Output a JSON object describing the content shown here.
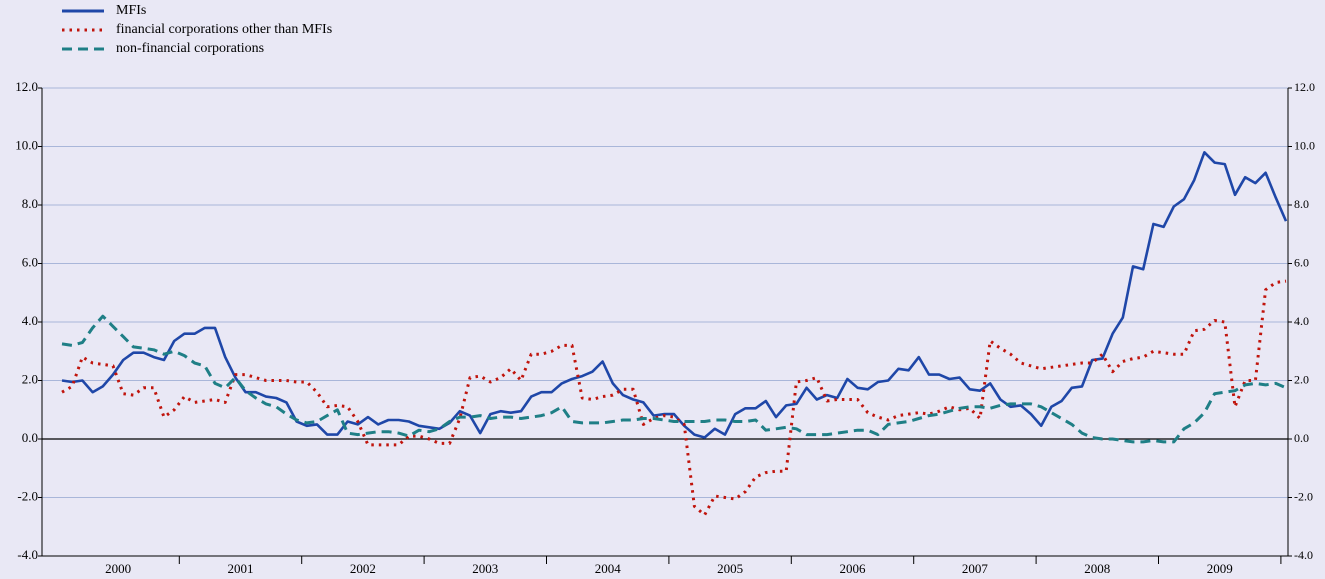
{
  "chart_data": {
    "type": "line",
    "categories": [
      null,
      null,
      null,
      null,
      null,
      null,
      "2000",
      null,
      null,
      null,
      null,
      null,
      null,
      null,
      null,
      null,
      null,
      null,
      "2001",
      null,
      null,
      null,
      null,
      null,
      null,
      null,
      null,
      null,
      null,
      null,
      "2002",
      null,
      null,
      null,
      null,
      null,
      null,
      null,
      null,
      null,
      null,
      null,
      "2003",
      null,
      null,
      null,
      null,
      null,
      null,
      null,
      null,
      null,
      null,
      null,
      "2004",
      null,
      null,
      null,
      null,
      null,
      null,
      null,
      null,
      null,
      null,
      null,
      "2005",
      null,
      null,
      null,
      null,
      null,
      null,
      null,
      null,
      null,
      null,
      null,
      "2006",
      null,
      null,
      null,
      null,
      null,
      null,
      null,
      null,
      null,
      null,
      null,
      "2007",
      null,
      null,
      null,
      null,
      null,
      null,
      null,
      null,
      null,
      null,
      null,
      "2008",
      null,
      null,
      null,
      null,
      null,
      null,
      null,
      null,
      null,
      null,
      null,
      "2009",
      null,
      null,
      null,
      null,
      null,
      null
    ],
    "series": [
      {
        "name": "MFIs",
        "color": "#1f47a8",
        "dash": "solid",
        "values": [
          2.0,
          1.95,
          2.0,
          1.6,
          1.8,
          2.2,
          2.7,
          2.95,
          2.95,
          2.8,
          2.7,
          3.35,
          3.6,
          3.6,
          3.8,
          3.8,
          2.8,
          2.1,
          1.6,
          1.6,
          1.45,
          1.4,
          1.25,
          0.6,
          0.45,
          0.5,
          0.15,
          0.15,
          0.6,
          0.5,
          0.75,
          0.5,
          0.65,
          0.65,
          0.6,
          0.45,
          0.4,
          0.35,
          0.55,
          0.95,
          0.8,
          0.2,
          0.85,
          0.95,
          0.9,
          0.95,
          1.45,
          1.6,
          1.6,
          1.9,
          2.05,
          2.15,
          2.3,
          2.65,
          1.9,
          1.5,
          1.35,
          1.25,
          0.8,
          0.85,
          0.85,
          0.45,
          0.15,
          0.05,
          0.35,
          0.15,
          0.85,
          1.05,
          1.05,
          1.3,
          0.75,
          1.15,
          1.2,
          1.75,
          1.35,
          1.5,
          1.4,
          2.05,
          1.75,
          1.7,
          1.95,
          2.0,
          2.4,
          2.35,
          2.8,
          2.2,
          2.2,
          2.05,
          2.1,
          1.7,
          1.65,
          1.9,
          1.35,
          1.1,
          1.15,
          0.85,
          0.45,
          1.1,
          1.3,
          1.75,
          1.8,
          2.7,
          2.75,
          3.6,
          4.15,
          5.9,
          5.8,
          7.35,
          7.25,
          7.95,
          8.2,
          8.85,
          9.8,
          9.45,
          9.4,
          8.35,
          8.95,
          8.75,
          9.1,
          8.25,
          7.45
        ]
      },
      {
        "name": "financial corporations other than MFIs",
        "color": "#c0140c",
        "dash": "dotted",
        "values": [
          1.6,
          1.8,
          2.8,
          2.6,
          2.55,
          2.5,
          1.55,
          1.5,
          1.75,
          1.75,
          0.75,
          1.0,
          1.45,
          1.25,
          1.3,
          1.35,
          1.25,
          2.2,
          2.2,
          2.1,
          2.0,
          2.0,
          2.0,
          1.95,
          1.95,
          1.6,
          1.1,
          1.15,
          1.1,
          0.6,
          -0.2,
          -0.2,
          -0.2,
          -0.2,
          0.1,
          0.1,
          0.0,
          -0.15,
          -0.15,
          0.7,
          2.1,
          2.15,
          1.95,
          2.1,
          2.4,
          2.0,
          2.9,
          2.9,
          3.0,
          3.2,
          3.2,
          1.4,
          1.35,
          1.45,
          1.5,
          1.7,
          1.7,
          0.5,
          0.7,
          0.8,
          0.75,
          0.5,
          -2.3,
          -2.6,
          -1.95,
          -2.0,
          -2.05,
          -1.8,
          -1.3,
          -1.15,
          -1.1,
          -1.1,
          1.95,
          2.0,
          2.1,
          1.3,
          1.35,
          1.35,
          1.35,
          0.9,
          0.75,
          0.65,
          0.8,
          0.85,
          0.9,
          0.85,
          0.95,
          1.1,
          1.0,
          1.05,
          0.7,
          3.35,
          3.1,
          2.9,
          2.6,
          2.5,
          2.4,
          2.45,
          2.5,
          2.55,
          2.6,
          2.6,
          2.9,
          2.3,
          2.65,
          2.75,
          2.8,
          3.0,
          2.95,
          2.9,
          2.9,
          3.7,
          3.75,
          4.05,
          4.0,
          1.1,
          2.0,
          2.0,
          5.1,
          5.35,
          5.4
        ]
      },
      {
        "name": "non-financial corporations",
        "color": "#1f7f86",
        "dash": "dashed",
        "values": [
          3.25,
          3.2,
          3.3,
          3.8,
          4.2,
          3.85,
          3.5,
          3.15,
          3.1,
          3.05,
          2.9,
          3.0,
          2.85,
          2.6,
          2.5,
          1.9,
          1.75,
          2.1,
          1.65,
          1.4,
          1.2,
          1.1,
          0.85,
          0.65,
          0.55,
          0.6,
          0.8,
          1.0,
          0.2,
          0.15,
          0.2,
          0.25,
          0.25,
          0.2,
          0.1,
          0.3,
          0.25,
          0.35,
          0.6,
          0.75,
          0.75,
          0.8,
          0.7,
          0.75,
          0.75,
          0.7,
          0.75,
          0.8,
          0.9,
          1.1,
          0.6,
          0.55,
          0.55,
          0.55,
          0.6,
          0.65,
          0.65,
          0.7,
          0.7,
          0.65,
          0.6,
          0.6,
          0.6,
          0.6,
          0.65,
          0.65,
          0.6,
          0.6,
          0.65,
          0.3,
          0.35,
          0.4,
          0.35,
          0.15,
          0.15,
          0.15,
          0.2,
          0.25,
          0.3,
          0.3,
          0.15,
          0.5,
          0.55,
          0.6,
          0.7,
          0.8,
          0.85,
          0.95,
          1.05,
          1.1,
          1.1,
          1.05,
          1.15,
          1.2,
          1.2,
          1.2,
          1.1,
          0.9,
          0.7,
          0.5,
          0.2,
          0.05,
          0.0,
          0.0,
          -0.05,
          -0.1,
          -0.1,
          -0.05,
          -0.1,
          -0.1,
          0.35,
          0.55,
          0.9,
          1.55,
          1.6,
          1.65,
          1.85,
          1.9,
          1.85,
          1.9,
          1.75
        ]
      }
    ],
    "ylim": [
      -4,
      12
    ],
    "yticks": [
      {
        "value": -4,
        "label": "-4.0"
      },
      {
        "value": -2,
        "label": "-2.0"
      },
      {
        "value": 0,
        "label": "0.0"
      },
      {
        "value": 2,
        "label": "2.0"
      },
      {
        "value": 4,
        "label": "4.0"
      },
      {
        "value": 6,
        "label": "6.0"
      },
      {
        "value": 8,
        "label": "8.0"
      },
      {
        "value": 10,
        "label": "10.0"
      },
      {
        "value": 12,
        "label": "12.0"
      }
    ],
    "y2lim": [
      -4,
      12
    ],
    "y2ticks": [
      {
        "value": -4,
        "label": "-4.0"
      },
      {
        "value": -2,
        "label": "-2.0"
      },
      {
        "value": 0,
        "label": "0.0"
      },
      {
        "value": 2,
        "label": "2.0"
      },
      {
        "value": 4,
        "label": "4.0"
      },
      {
        "value": 6,
        "label": "6.0"
      },
      {
        "value": 8,
        "label": "8.0"
      },
      {
        "value": 10,
        "label": "10.0"
      },
      {
        "value": 12,
        "label": "12.0"
      }
    ],
    "grid": true,
    "legend": "top-left"
  }
}
